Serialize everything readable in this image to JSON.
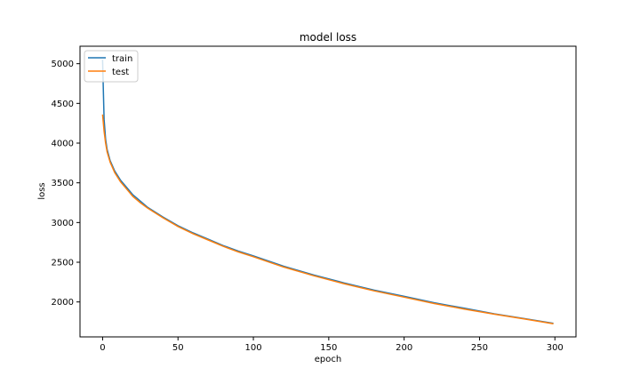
{
  "chart_data": {
    "type": "line",
    "title": "model loss",
    "xlabel": "epoch",
    "ylabel": "loss",
    "xlim": [
      -15,
      314
    ],
    "ylim": [
      1560,
      5220
    ],
    "xticks": [
      0,
      50,
      100,
      150,
      200,
      250,
      300
    ],
    "yticks": [
      2000,
      2500,
      3000,
      3500,
      4000,
      4500,
      5000
    ],
    "grid": false,
    "legend_position": "top-left",
    "series": [
      {
        "name": "train",
        "color": "#1f77b4",
        "x": [
          0,
          1,
          2,
          3,
          5,
          8,
          12,
          16,
          20,
          25,
          30,
          40,
          50,
          60,
          70,
          80,
          90,
          100,
          120,
          140,
          160,
          180,
          200,
          220,
          240,
          260,
          280,
          299
        ],
        "y": [
          5050,
          4300,
          4050,
          3920,
          3780,
          3650,
          3530,
          3440,
          3350,
          3270,
          3190,
          3070,
          2960,
          2870,
          2790,
          2710,
          2640,
          2580,
          2450,
          2340,
          2240,
          2150,
          2070,
          1990,
          1920,
          1850,
          1790,
          1730
        ]
      },
      {
        "name": "test",
        "color": "#ff7f0e",
        "x": [
          0,
          1,
          2,
          3,
          5,
          8,
          12,
          16,
          20,
          25,
          30,
          40,
          50,
          60,
          70,
          80,
          90,
          100,
          120,
          140,
          160,
          180,
          200,
          220,
          240,
          260,
          280,
          299
        ],
        "y": [
          4360,
          4150,
          4000,
          3890,
          3760,
          3630,
          3510,
          3420,
          3330,
          3250,
          3180,
          3060,
          2950,
          2860,
          2780,
          2700,
          2630,
          2570,
          2440,
          2330,
          2230,
          2140,
          2060,
          1980,
          1910,
          1845,
          1785,
          1725
        ]
      }
    ]
  }
}
